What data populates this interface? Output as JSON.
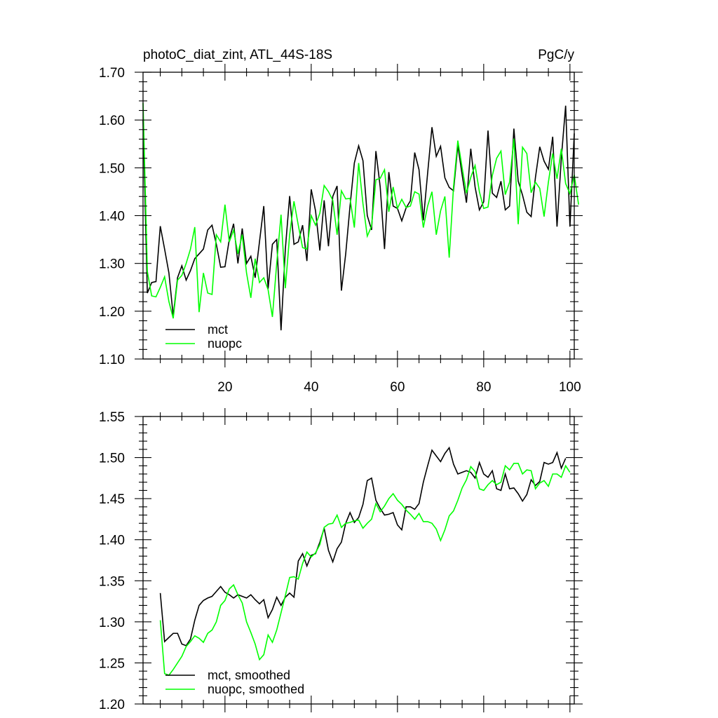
{
  "chart_data": [
    {
      "type": "line",
      "title": "photoC_diat_zint, ATL_44S-18S",
      "units": "PgC/y",
      "xlim": [
        1,
        101
      ],
      "ylim": [
        1.1,
        1.7
      ],
      "x_ticks": [
        20,
        40,
        60,
        80,
        100
      ],
      "x_tick_labels": [
        "20",
        "40",
        "60",
        "80",
        "100"
      ],
      "y_ticks": [
        1.1,
        1.2,
        1.3,
        1.4,
        1.5,
        1.6,
        1.7
      ],
      "y_tick_labels": [
        "1.10",
        "1.20",
        "1.30",
        "1.40",
        "1.50",
        "1.60",
        "1.70"
      ],
      "grid": false,
      "legend": "bottom-left",
      "x_start": 1,
      "series": [
        {
          "name": "mct",
          "color": "#000000",
          "values": [
            1.6,
            1.238,
            1.26,
            1.262,
            1.378,
            1.33,
            1.28,
            1.19,
            1.27,
            1.295,
            1.265,
            1.285,
            1.31,
            1.32,
            1.33,
            1.37,
            1.38,
            1.34,
            1.292,
            1.293,
            1.35,
            1.383,
            1.3,
            1.373,
            1.3,
            1.315,
            1.27,
            1.345,
            1.42,
            1.247,
            1.34,
            1.35,
            1.16,
            1.33,
            1.441,
            1.34,
            1.345,
            1.38,
            1.305,
            1.455,
            1.41,
            1.327,
            1.432,
            1.336,
            1.44,
            1.462,
            1.243,
            1.32,
            1.42,
            1.51,
            1.546,
            1.515,
            1.4,
            1.37,
            1.535,
            1.46,
            1.33,
            1.491,
            1.42,
            1.415,
            1.389,
            1.416,
            1.431,
            1.532,
            1.496,
            1.39,
            1.489,
            1.585,
            1.524,
            1.545,
            1.479,
            1.459,
            1.452,
            1.547,
            1.485,
            1.427,
            1.54,
            1.46,
            1.412,
            1.429,
            1.578,
            1.447,
            1.438,
            1.472,
            1.412,
            1.42,
            1.582,
            1.472,
            1.443,
            1.407,
            1.398,
            1.48,
            1.544,
            1.514,
            1.497,
            1.565,
            1.377,
            1.52,
            1.63,
            1.377,
            1.572
          ]
        },
        {
          "name": "nuopc",
          "color": "#00ff00",
          "values": [
            1.636,
            1.283,
            1.232,
            1.23,
            1.25,
            1.272,
            1.22,
            1.185,
            1.265,
            1.275,
            1.3,
            1.33,
            1.376,
            1.198,
            1.28,
            1.238,
            1.235,
            1.36,
            1.345,
            1.423,
            1.345,
            1.37,
            1.32,
            1.36,
            1.28,
            1.228,
            1.31,
            1.26,
            1.27,
            1.245,
            1.188,
            1.3,
            1.402,
            1.248,
            1.36,
            1.43,
            1.38,
            1.333,
            1.33,
            1.4,
            1.38,
            1.405,
            1.463,
            1.45,
            1.432,
            1.36,
            1.452,
            1.435,
            1.436,
            1.375,
            1.51,
            1.425,
            1.357,
            1.378,
            1.475,
            1.478,
            1.496,
            1.408,
            1.46,
            1.415,
            1.434,
            1.417,
            1.42,
            1.45,
            1.445,
            1.375,
            1.42,
            1.45,
            1.36,
            1.41,
            1.44,
            1.312,
            1.46,
            1.557,
            1.5,
            1.447,
            1.48,
            1.505,
            1.45,
            1.415,
            1.418,
            1.484,
            1.52,
            1.535,
            1.444,
            1.47,
            1.561,
            1.382,
            1.543,
            1.53,
            1.448,
            1.47,
            1.457,
            1.398,
            1.47,
            1.53,
            1.477,
            1.54,
            1.467,
            1.446,
            1.485,
            1.423
          ]
        }
      ]
    },
    {
      "type": "line",
      "xlim": [
        1,
        101
      ],
      "ylim": [
        1.2,
        1.55
      ],
      "y_ticks": [
        1.2,
        1.25,
        1.3,
        1.35,
        1.4,
        1.45,
        1.5,
        1.55
      ],
      "y_tick_labels": [
        "1.20",
        "1.25",
        "1.30",
        "1.35",
        "1.40",
        "1.45",
        "1.50",
        "1.55"
      ],
      "grid": false,
      "legend": "bottom-left",
      "x_start": 5,
      "series": [
        {
          "name": "mct, smoothed",
          "color": "#000000",
          "values": [
            1.335,
            1.276,
            1.281,
            1.286,
            1.286,
            1.273,
            1.271,
            1.279,
            1.302,
            1.32,
            1.326,
            1.329,
            1.331,
            1.337,
            1.343,
            1.336,
            1.333,
            1.329,
            1.333,
            1.331,
            1.329,
            1.333,
            1.327,
            1.322,
            1.327,
            1.305,
            1.315,
            1.33,
            1.32,
            1.33,
            1.335,
            1.33,
            1.374,
            1.383,
            1.368,
            1.381,
            1.383,
            1.397,
            1.414,
            1.387,
            1.373,
            1.389,
            1.397,
            1.42,
            1.433,
            1.421,
            1.427,
            1.443,
            1.472,
            1.475,
            1.448,
            1.438,
            1.43,
            1.431,
            1.433,
            1.418,
            1.412,
            1.44,
            1.44,
            1.437,
            1.444,
            1.47,
            1.49,
            1.509,
            1.502,
            1.495,
            1.505,
            1.512,
            1.492,
            1.48,
            1.482,
            1.484,
            1.482,
            1.475,
            1.494,
            1.48,
            1.476,
            1.484,
            1.462,
            1.46,
            1.48,
            1.462,
            1.463,
            1.456,
            1.447,
            1.455,
            1.473,
            1.466,
            1.471,
            1.494,
            1.492,
            1.494,
            1.506,
            1.487,
            1.499
          ]
        },
        {
          "name": "nuopc, smoothed",
          "color": "#00ff00",
          "values": [
            1.302,
            1.237,
            1.235,
            1.242,
            1.25,
            1.258,
            1.27,
            1.276,
            1.283,
            1.28,
            1.275,
            1.286,
            1.29,
            1.3,
            1.32,
            1.326,
            1.34,
            1.345,
            1.333,
            1.323,
            1.3,
            1.287,
            1.273,
            1.254,
            1.26,
            1.284,
            1.275,
            1.29,
            1.311,
            1.332,
            1.354,
            1.355,
            1.352,
            1.371,
            1.385,
            1.379,
            1.384,
            1.394,
            1.415,
            1.419,
            1.42,
            1.43,
            1.415,
            1.42,
            1.421,
            1.423,
            1.424,
            1.414,
            1.42,
            1.425,
            1.444,
            1.434,
            1.441,
            1.45,
            1.456,
            1.448,
            1.443,
            1.436,
            1.431,
            1.425,
            1.432,
            1.422,
            1.422,
            1.42,
            1.413,
            1.399,
            1.412,
            1.429,
            1.435,
            1.448,
            1.463,
            1.473,
            1.489,
            1.483,
            1.462,
            1.46,
            1.467,
            1.472,
            1.467,
            1.47,
            1.49,
            1.485,
            1.493,
            1.493,
            1.48,
            1.485,
            1.484,
            1.462,
            1.469,
            1.472,
            1.465,
            1.48,
            1.48,
            1.476,
            1.49,
            1.482
          ]
        }
      ]
    }
  ]
}
